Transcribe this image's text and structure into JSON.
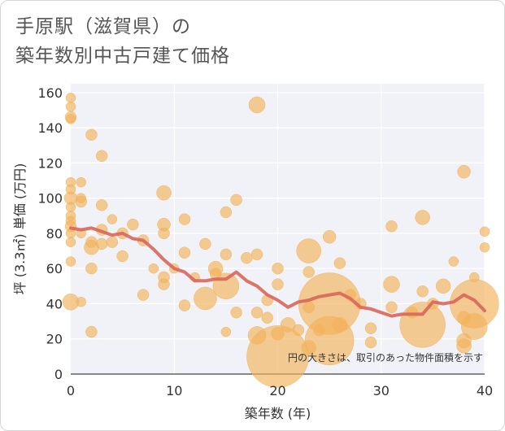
{
  "title_lines": [
    "手原駅（滋賀県）の",
    "築年数別中古戸建て価格"
  ],
  "chart_data": {
    "type": "scatter",
    "xlabel": "築年数 (年)",
    "ylabel": "坪 (3.3㎡) 単価 (万円)",
    "xlim": [
      0,
      40
    ],
    "ylim": [
      0,
      165
    ],
    "xticks": [
      0,
      10,
      20,
      30,
      40
    ],
    "yticks": [
      0,
      20,
      40,
      60,
      80,
      100,
      120,
      140,
      160
    ],
    "grid": true,
    "annotation": "円の大きさは、取引のあった物件面積を示す",
    "colors": {
      "bubble": "#f2b25a",
      "trend": "#d9665a",
      "plot_bg": "#f0f2f7"
    },
    "points": [
      {
        "x": 0,
        "y": 157,
        "s": 6
      },
      {
        "x": 0,
        "y": 152,
        "s": 6
      },
      {
        "x": 0,
        "y": 146,
        "s": 7
      },
      {
        "x": 0,
        "y": 145,
        "s": 6
      },
      {
        "x": 0,
        "y": 109,
        "s": 6
      },
      {
        "x": 0,
        "y": 105,
        "s": 6
      },
      {
        "x": 0,
        "y": 100,
        "s": 8
      },
      {
        "x": 0,
        "y": 95,
        "s": 6
      },
      {
        "x": 0,
        "y": 90,
        "s": 6
      },
      {
        "x": 0,
        "y": 87,
        "s": 6
      },
      {
        "x": 0,
        "y": 84,
        "s": 7
      },
      {
        "x": 0,
        "y": 80,
        "s": 6
      },
      {
        "x": 0,
        "y": 75,
        "s": 6
      },
      {
        "x": 0,
        "y": 64,
        "s": 6
      },
      {
        "x": 0,
        "y": 41,
        "s": 10
      },
      {
        "x": 1,
        "y": 109,
        "s": 6
      },
      {
        "x": 1,
        "y": 100,
        "s": 6
      },
      {
        "x": 1,
        "y": 98,
        "s": 7
      },
      {
        "x": 1,
        "y": 80,
        "s": 6
      },
      {
        "x": 1,
        "y": 41,
        "s": 6
      },
      {
        "x": 2,
        "y": 136,
        "s": 7
      },
      {
        "x": 2,
        "y": 75,
        "s": 7
      },
      {
        "x": 2,
        "y": 72,
        "s": 9
      },
      {
        "x": 2,
        "y": 60,
        "s": 7
      },
      {
        "x": 2,
        "y": 24,
        "s": 7
      },
      {
        "x": 3,
        "y": 124,
        "s": 7
      },
      {
        "x": 3,
        "y": 96,
        "s": 7
      },
      {
        "x": 3,
        "y": 82,
        "s": 7
      },
      {
        "x": 3,
        "y": 74,
        "s": 7
      },
      {
        "x": 4,
        "y": 88,
        "s": 6
      },
      {
        "x": 4,
        "y": 75,
        "s": 7
      },
      {
        "x": 5,
        "y": 80,
        "s": 7
      },
      {
        "x": 5,
        "y": 67,
        "s": 7
      },
      {
        "x": 6,
        "y": 85,
        "s": 7
      },
      {
        "x": 7,
        "y": 76,
        "s": 7
      },
      {
        "x": 7,
        "y": 45,
        "s": 7
      },
      {
        "x": 8,
        "y": 60,
        "s": 6
      },
      {
        "x": 9,
        "y": 103,
        "s": 9
      },
      {
        "x": 9,
        "y": 85,
        "s": 8
      },
      {
        "x": 9,
        "y": 80,
        "s": 7
      },
      {
        "x": 9,
        "y": 55,
        "s": 7
      },
      {
        "x": 9,
        "y": 51,
        "s": 7
      },
      {
        "x": 10,
        "y": 60,
        "s": 6
      },
      {
        "x": 11,
        "y": 88,
        "s": 7
      },
      {
        "x": 11,
        "y": 69,
        "s": 7
      },
      {
        "x": 11,
        "y": 39,
        "s": 7
      },
      {
        "x": 12,
        "y": 55,
        "s": 6
      },
      {
        "x": 13,
        "y": 74,
        "s": 7
      },
      {
        "x": 13,
        "y": 43,
        "s": 14
      },
      {
        "x": 14,
        "y": 60,
        "s": 9
      },
      {
        "x": 14,
        "y": 57,
        "s": 7
      },
      {
        "x": 15,
        "y": 92,
        "s": 7
      },
      {
        "x": 15,
        "y": 68,
        "s": 7
      },
      {
        "x": 15,
        "y": 50,
        "s": 16
      },
      {
        "x": 15,
        "y": 24,
        "s": 6
      },
      {
        "x": 16,
        "y": 99,
        "s": 7
      },
      {
        "x": 16,
        "y": 35,
        "s": 7
      },
      {
        "x": 17,
        "y": 66,
        "s": 7
      },
      {
        "x": 18,
        "y": 153,
        "s": 10
      },
      {
        "x": 18,
        "y": 68,
        "s": 7
      },
      {
        "x": 18,
        "y": 35,
        "s": 7
      },
      {
        "x": 18,
        "y": 22,
        "s": 11
      },
      {
        "x": 19,
        "y": 42,
        "s": 7
      },
      {
        "x": 19,
        "y": 32,
        "s": 7
      },
      {
        "x": 20,
        "y": 60,
        "s": 7
      },
      {
        "x": 20,
        "y": 51,
        "s": 7
      },
      {
        "x": 20,
        "y": 23,
        "s": 8
      },
      {
        "x": 20,
        "y": 10,
        "s": 38
      },
      {
        "x": 21,
        "y": 28,
        "s": 9
      },
      {
        "x": 22,
        "y": 25,
        "s": 7
      },
      {
        "x": 23,
        "y": 70,
        "s": 15
      },
      {
        "x": 23,
        "y": 58,
        "s": 7
      },
      {
        "x": 23,
        "y": 38,
        "s": 7
      },
      {
        "x": 23,
        "y": 15,
        "s": 9
      },
      {
        "x": 24,
        "y": 25,
        "s": 7
      },
      {
        "x": 25,
        "y": 78,
        "s": 8
      },
      {
        "x": 25,
        "y": 40,
        "s": 38
      },
      {
        "x": 25,
        "y": 19,
        "s": 30
      },
      {
        "x": 26,
        "y": 63,
        "s": 7
      },
      {
        "x": 26,
        "y": 28,
        "s": 9
      },
      {
        "x": 27,
        "y": 45,
        "s": 7
      },
      {
        "x": 28,
        "y": 40,
        "s": 7
      },
      {
        "x": 29,
        "y": 26,
        "s": 7
      },
      {
        "x": 29,
        "y": 18,
        "s": 7
      },
      {
        "x": 31,
        "y": 84,
        "s": 7
      },
      {
        "x": 31,
        "y": 51,
        "s": 10
      },
      {
        "x": 31,
        "y": 38,
        "s": 7
      },
      {
        "x": 33,
        "y": 35,
        "s": 7
      },
      {
        "x": 34,
        "y": 89,
        "s": 9
      },
      {
        "x": 34,
        "y": 47,
        "s": 7
      },
      {
        "x": 34,
        "y": 28,
        "s": 28
      },
      {
        "x": 35,
        "y": 40,
        "s": 7
      },
      {
        "x": 36,
        "y": 50,
        "s": 9
      },
      {
        "x": 37,
        "y": 64,
        "s": 6
      },
      {
        "x": 38,
        "y": 115,
        "s": 8
      },
      {
        "x": 38,
        "y": 32,
        "s": 8
      },
      {
        "x": 38,
        "y": 19,
        "s": 9
      },
      {
        "x": 38,
        "y": 16,
        "s": 9
      },
      {
        "x": 39,
        "y": 55,
        "s": 6
      },
      {
        "x": 39,
        "y": 40,
        "s": 30
      },
      {
        "x": 39,
        "y": 27,
        "s": 16
      },
      {
        "x": 40,
        "y": 81,
        "s": 6
      },
      {
        "x": 40,
        "y": 72,
        "s": 6
      }
    ],
    "trend": [
      {
        "x": 0,
        "y": 83
      },
      {
        "x": 1,
        "y": 82
      },
      {
        "x": 2,
        "y": 83
      },
      {
        "x": 3,
        "y": 81
      },
      {
        "x": 4,
        "y": 79
      },
      {
        "x": 5,
        "y": 80
      },
      {
        "x": 6,
        "y": 77
      },
      {
        "x": 7,
        "y": 76
      },
      {
        "x": 8,
        "y": 71
      },
      {
        "x": 9,
        "y": 65
      },
      {
        "x": 10,
        "y": 60
      },
      {
        "x": 11,
        "y": 58
      },
      {
        "x": 12,
        "y": 53
      },
      {
        "x": 13,
        "y": 53
      },
      {
        "x": 14,
        "y": 54
      },
      {
        "x": 15,
        "y": 54
      },
      {
        "x": 16,
        "y": 58
      },
      {
        "x": 17,
        "y": 53
      },
      {
        "x": 18,
        "y": 50
      },
      {
        "x": 19,
        "y": 45
      },
      {
        "x": 20,
        "y": 42
      },
      {
        "x": 21,
        "y": 38
      },
      {
        "x": 22,
        "y": 41
      },
      {
        "x": 23,
        "y": 42
      },
      {
        "x": 24,
        "y": 44
      },
      {
        "x": 25,
        "y": 45
      },
      {
        "x": 26,
        "y": 46
      },
      {
        "x": 27,
        "y": 43
      },
      {
        "x": 28,
        "y": 38
      },
      {
        "x": 29,
        "y": 37
      },
      {
        "x": 30,
        "y": 35
      },
      {
        "x": 31,
        "y": 33
      },
      {
        "x": 32,
        "y": 34
      },
      {
        "x": 33,
        "y": 34
      },
      {
        "x": 34,
        "y": 34
      },
      {
        "x": 35,
        "y": 41
      },
      {
        "x": 36,
        "y": 40
      },
      {
        "x": 37,
        "y": 41
      },
      {
        "x": 38,
        "y": 45
      },
      {
        "x": 39,
        "y": 42
      },
      {
        "x": 40,
        "y": 36
      }
    ]
  }
}
